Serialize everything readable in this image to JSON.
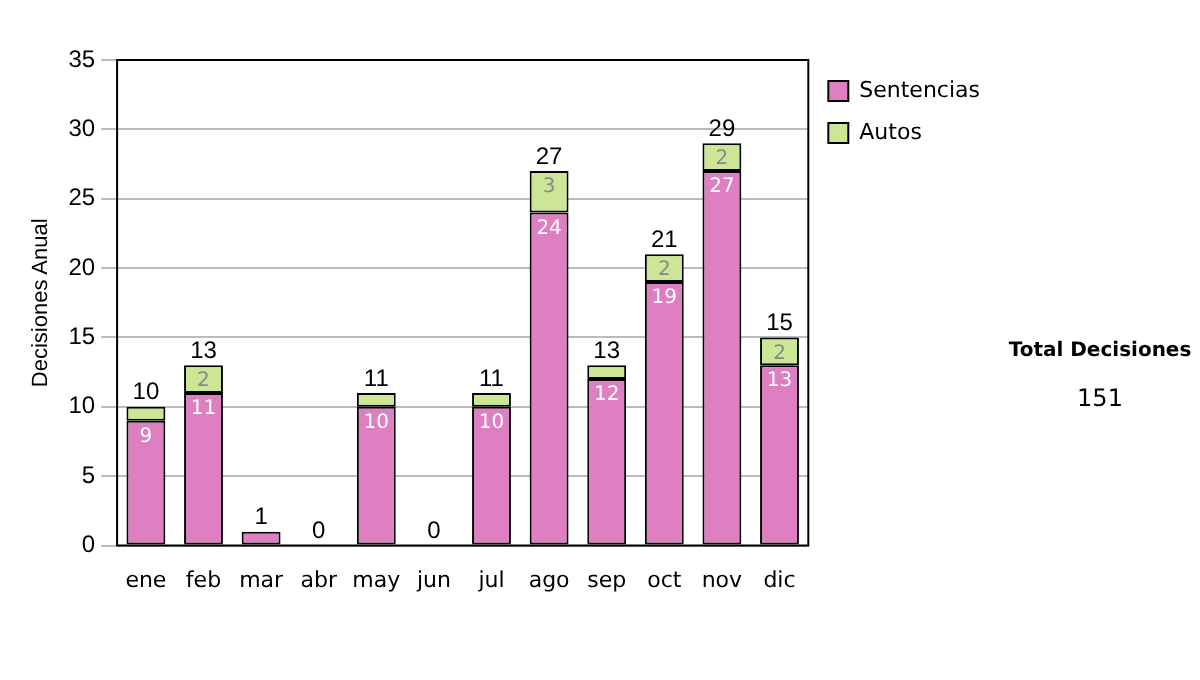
{
  "chart_data": {
    "type": "bar",
    "stacked": true,
    "ylabel": "Decisiones Anual",
    "categories": [
      "ene",
      "feb",
      "mar",
      "abr",
      "may",
      "jun",
      "jul",
      "ago",
      "sep",
      "oct",
      "nov",
      "dic"
    ],
    "series": [
      {
        "name": "Sentencias",
        "color": "#dd7fc0",
        "values": [
          9,
          11,
          1,
          0,
          10,
          0,
          10,
          24,
          12,
          19,
          27,
          13
        ],
        "value_labels": [
          "9",
          "11",
          null,
          null,
          "10",
          null,
          "10",
          "24",
          "12",
          "19",
          "27",
          "13"
        ]
      },
      {
        "name": "Autos",
        "color": "#cde696",
        "values": [
          1,
          2,
          0,
          0,
          1,
          0,
          1,
          3,
          1,
          2,
          2,
          2
        ],
        "value_labels": [
          null,
          "2",
          null,
          null,
          null,
          null,
          null,
          "3",
          null,
          "2",
          "2",
          "2"
        ]
      }
    ],
    "totals": [
      "10",
      "13",
      "1",
      "0",
      "11",
      "0",
      "11",
      "27",
      "13",
      "21",
      "29",
      "15"
    ],
    "ylim": [
      0,
      35
    ],
    "yticks": [
      0,
      5,
      10,
      15,
      20,
      25,
      30,
      35
    ],
    "grid": "y",
    "legend": "right",
    "annotations": [
      "Total Decisiones",
      "151"
    ]
  }
}
